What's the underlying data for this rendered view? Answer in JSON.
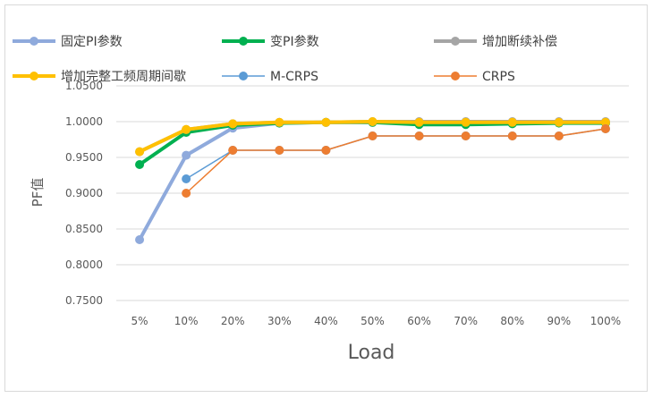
{
  "chart_data": {
    "type": "line",
    "title": "",
    "xlabel": "Load",
    "ylabel": "PF值",
    "categories": [
      "5%",
      "10%",
      "20%",
      "30%",
      "40%",
      "50%",
      "60%",
      "70%",
      "80%",
      "90%",
      "100%"
    ],
    "ylim": [
      0.75,
      1.05
    ],
    "yticks": [
      "0.7500",
      "0.8000",
      "0.8500",
      "0.9000",
      "0.9500",
      "1.0000",
      "1.0500"
    ],
    "grid": true,
    "legend_position": "top",
    "series": [
      {
        "name": "固定PI参数",
        "color": "#8faadc",
        "width": 4,
        "values": [
          0.835,
          0.953,
          0.991,
          0.998,
          0.999,
          0.999,
          0.999,
          0.999,
          0.999,
          0.999,
          0.999
        ]
      },
      {
        "name": "变PI参数",
        "color": "#00b050",
        "width": 4,
        "values": [
          0.94,
          0.985,
          0.995,
          0.998,
          0.999,
          0.999,
          0.996,
          0.996,
          0.997,
          0.998,
          0.998
        ]
      },
      {
        "name": "增加断续补偿",
        "color": "#a5a5a5",
        "width": 4,
        "values": [
          0.958,
          0.989,
          0.997,
          0.999,
          0.999,
          1.0,
          1.0,
          1.0,
          1.0,
          1.0,
          1.0
        ]
      },
      {
        "name": "增加完整工频周期间歇",
        "color": "#ffc000",
        "width": 4,
        "values": [
          0.958,
          0.989,
          0.997,
          0.999,
          0.999,
          1.0,
          0.999,
          0.999,
          0.999,
          0.999,
          0.999
        ]
      },
      {
        "name": "M-CRPS",
        "color": "#5b9bd5",
        "width": 1.5,
        "values": [
          null,
          0.92,
          0.96,
          0.96,
          0.96,
          0.98,
          0.98,
          0.98,
          0.98,
          0.98,
          0.99
        ]
      },
      {
        "name": "CRPS",
        "color": "#ed7d31",
        "width": 1.5,
        "values": [
          null,
          0.9,
          0.96,
          0.96,
          0.96,
          0.98,
          0.98,
          0.98,
          0.98,
          0.98,
          0.99
        ]
      }
    ]
  }
}
